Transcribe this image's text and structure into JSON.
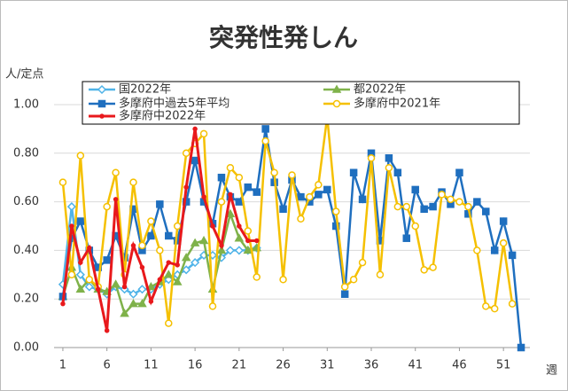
{
  "chart_data": {
    "type": "line",
    "title": "突発性発しん",
    "y_label": "人/定点",
    "x_label": "週",
    "x": [
      1,
      2,
      3,
      4,
      5,
      6,
      7,
      8,
      9,
      10,
      11,
      12,
      13,
      14,
      15,
      16,
      17,
      18,
      19,
      20,
      21,
      22,
      23,
      24,
      25,
      26,
      27,
      28,
      29,
      30,
      31,
      32,
      33,
      34,
      35,
      36,
      37,
      38,
      39,
      40,
      41,
      42,
      43,
      44,
      45,
      46,
      47,
      48,
      49,
      50,
      51,
      52,
      53
    ],
    "xlim": [
      0,
      54
    ],
    "xticks": [
      1,
      6,
      11,
      16,
      21,
      26,
      31,
      36,
      41,
      46,
      51
    ],
    "ylim": [
      0,
      1
    ],
    "yticks": [
      {
        "value": 0,
        "label": "0.00"
      },
      {
        "value": 0.2,
        "label": "0.20"
      },
      {
        "value": 0.4,
        "label": "0.40"
      },
      {
        "value": 0.6,
        "label": "0.60"
      },
      {
        "value": 0.8,
        "label": "0.80"
      },
      {
        "value": 1,
        "label": "1.00"
      }
    ],
    "grid": true,
    "legend": "top",
    "series": [
      {
        "name": "国2022年",
        "color": "#4fb3e8",
        "marker": "diamond",
        "values": [
          0.26,
          0.58,
          0.3,
          0.25,
          0.24,
          0.22,
          0.25,
          0.24,
          0.22,
          0.24,
          0.24,
          0.26,
          0.28,
          0.3,
          0.32,
          0.35,
          0.38,
          0.38,
          0.37,
          0.4,
          0.4,
          0.4,
          0.41,
          null,
          null,
          null,
          null,
          null,
          null,
          null,
          null,
          null,
          null,
          null,
          null,
          null,
          null,
          null,
          null,
          null,
          null,
          null,
          null,
          null,
          null,
          null,
          null,
          null,
          null,
          null,
          null,
          null,
          null
        ]
      },
      {
        "name": "都2022年",
        "color": "#7fb24a",
        "marker": "triangle",
        "values": [
          0.21,
          0.33,
          0.24,
          0.28,
          0.24,
          0.23,
          0.26,
          0.14,
          0.18,
          0.18,
          0.25,
          0.27,
          0.3,
          0.27,
          0.37,
          0.43,
          0.44,
          0.24,
          0.4,
          0.55,
          0.45,
          0.4,
          0.41,
          null,
          null,
          null,
          null,
          null,
          null,
          null,
          null,
          null,
          null,
          null,
          null,
          null,
          null,
          null,
          null,
          null,
          null,
          null,
          null,
          null,
          null,
          null,
          null,
          null,
          null,
          null,
          null,
          null,
          null
        ]
      },
      {
        "name": "多摩府中過去5年平均",
        "color": "#1f6fbf",
        "marker": "square",
        "values": [
          0.21,
          0.45,
          0.52,
          0.4,
          0.33,
          0.36,
          0.46,
          0.37,
          0.57,
          0.4,
          0.46,
          0.59,
          0.46,
          0.44,
          0.6,
          0.77,
          0.6,
          0.51,
          0.7,
          0.62,
          0.6,
          0.66,
          0.64,
          0.9,
          0.68,
          0.57,
          0.69,
          0.62,
          0.6,
          0.63,
          0.65,
          0.5,
          0.22,
          0.72,
          0.61,
          0.8,
          0.44,
          0.78,
          0.72,
          0.45,
          0.65,
          0.57,
          0.58,
          0.64,
          0.59,
          0.72,
          0.55,
          0.6,
          0.56,
          0.4,
          0.52,
          0.38,
          0.0
        ]
      },
      {
        "name": "多摩府中2021年",
        "color": "#f5c000",
        "marker": "circle",
        "values": [
          0.68,
          0.3,
          0.79,
          0.28,
          0.25,
          0.58,
          0.72,
          0.3,
          0.68,
          0.42,
          0.52,
          0.4,
          0.1,
          0.5,
          0.8,
          0.84,
          0.88,
          0.17,
          0.6,
          0.74,
          0.7,
          0.48,
          0.29,
          0.85,
          0.72,
          0.28,
          0.71,
          0.53,
          0.62,
          0.67,
          0.95,
          0.56,
          0.25,
          0.28,
          0.35,
          0.78,
          0.3,
          0.74,
          0.58,
          0.58,
          0.5,
          0.32,
          0.33,
          0.63,
          0.61,
          0.6,
          0.58,
          0.4,
          0.17,
          0.16,
          0.43,
          0.18,
          null
        ]
      },
      {
        "name": "多摩府中2022年",
        "color": "#e8191c",
        "marker": "dot",
        "values": [
          0.18,
          0.5,
          0.35,
          0.41,
          0.24,
          0.07,
          0.61,
          0.25,
          0.42,
          0.33,
          0.19,
          0.28,
          0.35,
          0.34,
          0.66,
          0.9,
          0.62,
          0.5,
          0.42,
          0.63,
          0.5,
          0.44,
          0.44,
          null,
          null,
          null,
          null,
          null,
          null,
          null,
          null,
          null,
          null,
          null,
          null,
          null,
          null,
          null,
          null,
          null,
          null,
          null,
          null,
          null,
          null,
          null,
          null,
          null,
          null,
          null,
          null,
          null,
          null
        ]
      }
    ]
  }
}
